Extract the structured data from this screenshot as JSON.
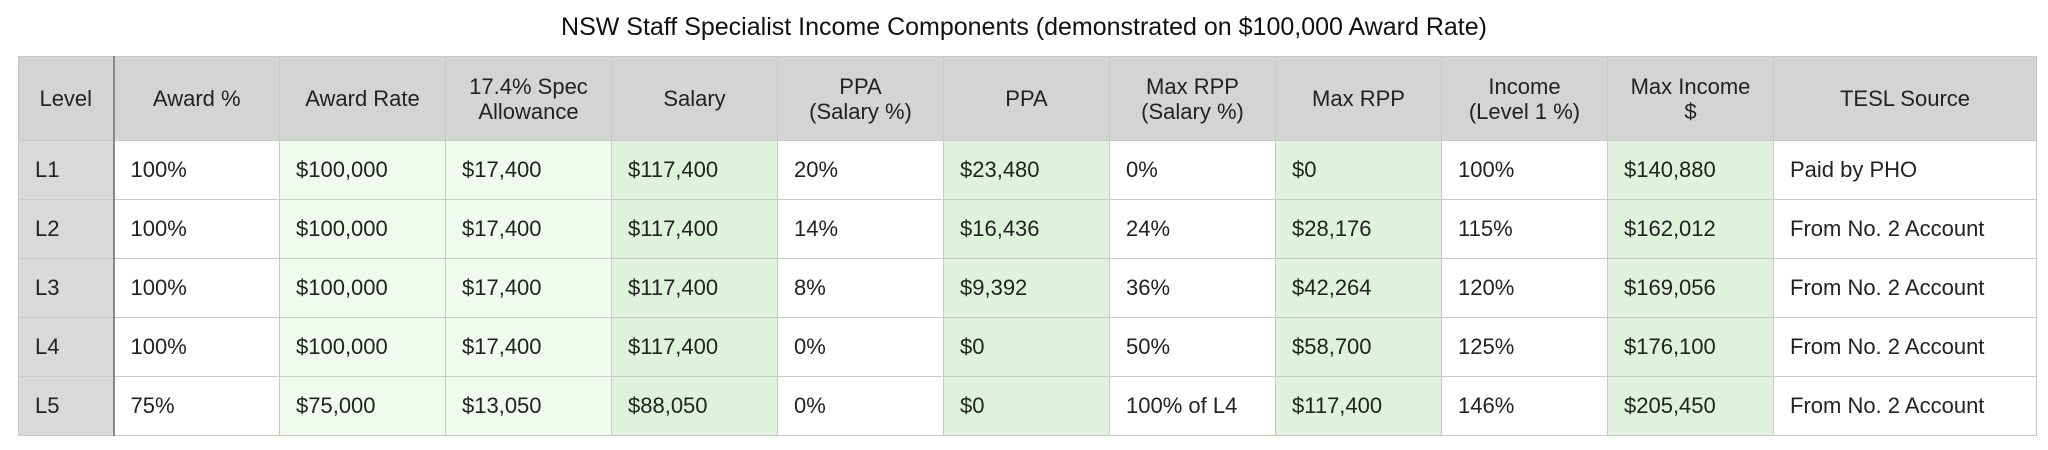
{
  "title": "NSW Staff Specialist Income Components (demonstrated on $100,000 Award Rate)",
  "colors": {
    "header_bg": "#d4d4d4",
    "level_bg": "#d9d9d9",
    "pale_green": "#f1faef",
    "green": "#dff3dc",
    "white": "#ffffff",
    "border": "#c9c9c9"
  },
  "table": {
    "headers": [
      [
        "Level"
      ],
      [
        "Award %"
      ],
      [
        "Award Rate"
      ],
      [
        "17.4% Spec",
        "Allowance"
      ],
      [
        "Salary"
      ],
      [
        "PPA",
        "(Salary %)"
      ],
      [
        "PPA"
      ],
      [
        "Max RPP",
        "(Salary %)"
      ],
      [
        "Max RPP"
      ],
      [
        "Income",
        "(Level 1 %)"
      ],
      [
        "Max Income",
        "$"
      ],
      [
        "TESL Source"
      ]
    ],
    "rows": [
      [
        "L1",
        "100%",
        "$100,000",
        "$17,400",
        "$117,400",
        "20%",
        "$23,480",
        "0%",
        "$0",
        "100%",
        "$140,880",
        "Paid by PHO"
      ],
      [
        "L2",
        "100%",
        "$100,000",
        "$17,400",
        "$117,400",
        "14%",
        "$16,436",
        "24%",
        "$28,176",
        "115%",
        "$162,012",
        "From No. 2 Account"
      ],
      [
        "L3",
        "100%",
        "$100,000",
        "$17,400",
        "$117,400",
        "8%",
        "$9,392",
        "36%",
        "$42,264",
        "120%",
        "$169,056",
        "From No. 2 Account"
      ],
      [
        "L4",
        "100%",
        "$100,000",
        "$17,400",
        "$117,400",
        "0%",
        "$0",
        "50%",
        "$58,700",
        "125%",
        "$176,100",
        "From No. 2 Account"
      ],
      [
        "L5",
        "75%",
        "$75,000",
        "$13,050",
        "$88,050",
        "0%",
        "$0",
        "100% of L4",
        "$117,400",
        "146%",
        "$205,450",
        "From No. 2 Account"
      ]
    ]
  }
}
